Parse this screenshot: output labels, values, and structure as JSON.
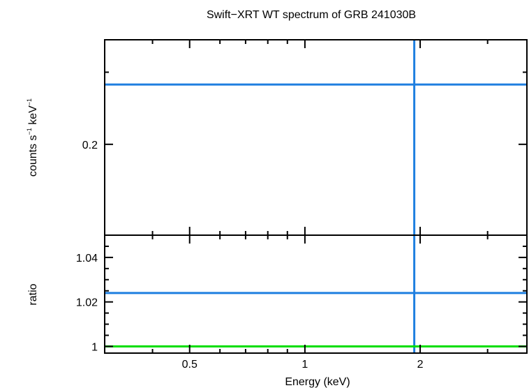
{
  "title": "Swift−XRT WT spectrum of GRB 241030B",
  "colors": {
    "data": "#1f7fe0",
    "model": "#00dd00",
    "axes": "#000000"
  },
  "chart_data": [
    {
      "type": "line",
      "panel": "spectrum",
      "ylabel_main": "counts s",
      "ylabel_sup1": "−1",
      "ylabel_mid": " keV",
      "ylabel_sup2": "−1",
      "xscale": "log",
      "yscale": "log",
      "xlim": [
        0.3,
        3.8
      ],
      "ylim": [
        0.12,
        0.36
      ],
      "yticks": [
        {
          "value": 0.2,
          "label": "0.2"
        }
      ],
      "series": [
        {
          "points": [
            [
              0.3,
              0.28
            ],
            [
              3.8,
              0.28
            ]
          ]
        },
        {
          "points": [
            [
              1.93,
              0.12
            ],
            [
              1.93,
              0.36
            ]
          ]
        }
      ]
    },
    {
      "type": "line",
      "panel": "ratio",
      "ylabel": "ratio",
      "xlabel": "Energy (keV)",
      "xscale": "log",
      "xlim": [
        0.3,
        3.8
      ],
      "ylim": [
        0.997,
        1.05
      ],
      "xticks": [
        {
          "value": 0.5,
          "label": "0.5"
        },
        {
          "value": 1,
          "label": "1"
        },
        {
          "value": 2,
          "label": "2"
        }
      ],
      "yticks": [
        {
          "value": 1,
          "label": "1"
        },
        {
          "value": 1.02,
          "label": "1.02"
        },
        {
          "value": 1.04,
          "label": "1.04"
        }
      ],
      "series": [
        {
          "points": [
            [
              0.3,
              1.024
            ],
            [
              3.8,
              1.024
            ]
          ]
        },
        {
          "points": [
            [
              1.93,
              0.997
            ],
            [
              1.93,
              1.05
            ]
          ]
        },
        {
          "points": [
            [
              0.3,
              1.0
            ],
            [
              3.8,
              1.0
            ]
          ]
        }
      ]
    }
  ]
}
